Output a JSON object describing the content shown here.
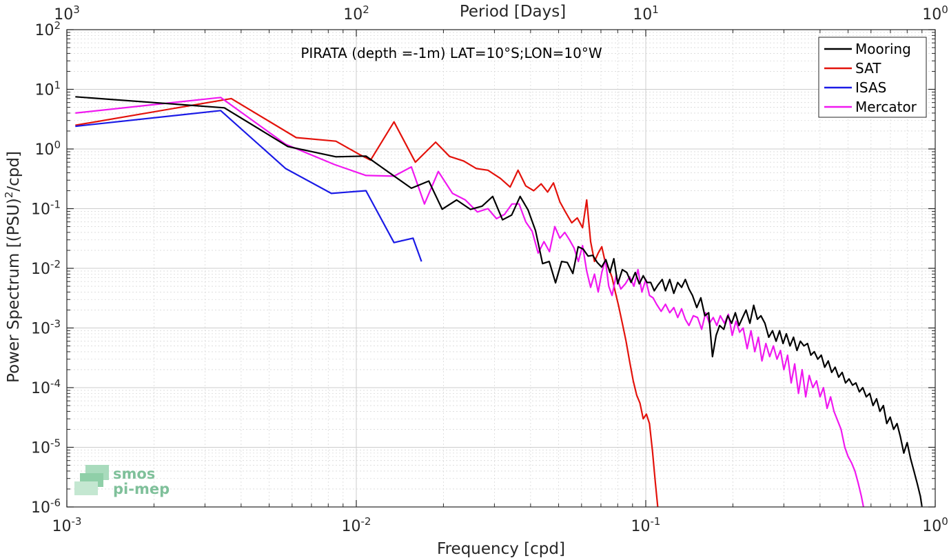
{
  "chart_data": {
    "type": "line",
    "title": "PIRATA (depth =-1m) LAT=10°S;LON=10°W",
    "xlabel": "Frequency [cpd]",
    "ylabel": "Power Spectrum [(PSU)",
    "ylabel_sup": "2",
    "ylabel_tail": "/cpd]",
    "top_xlabel": "Period [Days]",
    "xscale": "log",
    "yscale": "log",
    "xlim": [
      0.001,
      1
    ],
    "ylim": [
      1e-06,
      100
    ],
    "grid": true,
    "legend_position": "top-right",
    "x_ticks": [
      {
        "value": 0.001,
        "base": "10",
        "exp": "-3"
      },
      {
        "value": 0.01,
        "base": "10",
        "exp": "-2"
      },
      {
        "value": 0.1,
        "base": "10",
        "exp": "-1"
      },
      {
        "value": 1,
        "base": "10",
        "exp": "0"
      }
    ],
    "top_ticks": [
      {
        "value": 1000,
        "base": "10",
        "exp": "3"
      },
      {
        "value": 100,
        "base": "10",
        "exp": "2"
      },
      {
        "value": 10,
        "base": "10",
        "exp": "1"
      },
      {
        "value": 1,
        "base": "10",
        "exp": "0"
      }
    ],
    "y_ticks": [
      {
        "value": 100,
        "base": "10",
        "exp": "2"
      },
      {
        "value": 10,
        "base": "10",
        "exp": "1"
      },
      {
        "value": 1,
        "base": "10",
        "exp": "0"
      },
      {
        "value": 0.1,
        "base": "10",
        "exp": "-1"
      },
      {
        "value": 0.01,
        "base": "10",
        "exp": "-2"
      },
      {
        "value": 0.001,
        "base": "10",
        "exp": "-3"
      },
      {
        "value": 0.0001,
        "base": "10",
        "exp": "-4"
      },
      {
        "value": 1e-05,
        "base": "10",
        "exp": "-5"
      },
      {
        "value": 1e-06,
        "base": "10",
        "exp": "-6"
      }
    ],
    "series": [
      {
        "name": "Mooring",
        "color": "#000000",
        "points": [
          [
            0.00107,
            7.5
          ],
          [
            0.0035,
            4.9
          ],
          [
            0.0058,
            1.1
          ],
          [
            0.0085,
            0.74
          ],
          [
            0.0108,
            0.76
          ],
          [
            0.013,
            0.4
          ],
          [
            0.0155,
            0.22
          ],
          [
            0.0178,
            0.29
          ],
          [
            0.0198,
            0.098
          ],
          [
            0.0222,
            0.14
          ],
          [
            0.0248,
            0.097
          ],
          [
            0.0272,
            0.11
          ],
          [
            0.0296,
            0.16
          ],
          [
            0.032,
            0.065
          ],
          [
            0.0344,
            0.078
          ],
          [
            0.0368,
            0.16
          ],
          [
            0.0392,
            0.095
          ],
          [
            0.0416,
            0.043
          ],
          [
            0.044,
            0.012
          ],
          [
            0.0464,
            0.013
          ],
          [
            0.0488,
            0.0057
          ],
          [
            0.0512,
            0.013
          ],
          [
            0.0536,
            0.0125
          ],
          [
            0.056,
            0.0082
          ],
          [
            0.0584,
            0.023
          ],
          [
            0.0608,
            0.021
          ],
          [
            0.0632,
            0.016
          ],
          [
            0.0656,
            0.0165
          ],
          [
            0.068,
            0.0125
          ],
          [
            0.0704,
            0.0105
          ],
          [
            0.0728,
            0.014
          ],
          [
            0.0752,
            0.0085
          ],
          [
            0.0776,
            0.0145
          ],
          [
            0.08,
            0.0055
          ],
          [
            0.083,
            0.0095
          ],
          [
            0.086,
            0.0085
          ],
          [
            0.089,
            0.0058
          ],
          [
            0.092,
            0.0085
          ],
          [
            0.095,
            0.0055
          ],
          [
            0.098,
            0.0075
          ],
          [
            0.101,
            0.0058
          ],
          [
            0.104,
            0.0058
          ],
          [
            0.107,
            0.0042
          ],
          [
            0.11,
            0.0052
          ],
          [
            0.114,
            0.0065
          ],
          [
            0.117,
            0.0042
          ],
          [
            0.121,
            0.0065
          ],
          [
            0.125,
            0.0038
          ],
          [
            0.129,
            0.0058
          ],
          [
            0.133,
            0.0048
          ],
          [
            0.137,
            0.0065
          ],
          [
            0.141,
            0.0045
          ],
          [
            0.145,
            0.0035
          ],
          [
            0.15,
            0.0022
          ],
          [
            0.155,
            0.0032
          ],
          [
            0.16,
            0.0016
          ],
          [
            0.165,
            0.0018
          ],
          [
            0.17,
            0.00033
          ],
          [
            0.175,
            0.00075
          ],
          [
            0.18,
            0.0011
          ],
          [
            0.186,
            0.00095
          ],
          [
            0.192,
            0.0016
          ],
          [
            0.198,
            0.0012
          ],
          [
            0.204,
            0.0018
          ],
          [
            0.21,
            0.0011
          ],
          [
            0.216,
            0.0015
          ],
          [
            0.222,
            0.002
          ],
          [
            0.229,
            0.0012
          ],
          [
            0.236,
            0.0024
          ],
          [
            0.243,
            0.0014
          ],
          [
            0.25,
            0.0016
          ],
          [
            0.258,
            0.0012
          ],
          [
            0.266,
            0.0007
          ],
          [
            0.274,
            0.0009
          ],
          [
            0.282,
            0.0006
          ],
          [
            0.29,
            0.0009
          ],
          [
            0.298,
            0.00055
          ],
          [
            0.306,
            0.0008
          ],
          [
            0.315,
            0.0005
          ],
          [
            0.324,
            0.0007
          ],
          [
            0.333,
            0.00042
          ],
          [
            0.342,
            0.0006
          ],
          [
            0.352,
            0.0005
          ],
          [
            0.362,
            0.00055
          ],
          [
            0.372,
            0.00035
          ],
          [
            0.382,
            0.0004
          ],
          [
            0.393,
            0.0003
          ],
          [
            0.404,
            0.00035
          ],
          [
            0.415,
            0.00022
          ],
          [
            0.427,
            0.00028
          ],
          [
            0.439,
            0.00018
          ],
          [
            0.451,
            0.00022
          ],
          [
            0.464,
            0.00015
          ],
          [
            0.477,
            0.00018
          ],
          [
            0.49,
            0.00012
          ],
          [
            0.504,
            0.00014
          ],
          [
            0.518,
            0.00011
          ],
          [
            0.532,
            0.00012
          ],
          [
            0.547,
            8.5e-05
          ],
          [
            0.562,
            0.0001
          ],
          [
            0.578,
            7e-05
          ],
          [
            0.594,
            8e-05
          ],
          [
            0.61,
            5e-05
          ],
          [
            0.627,
            6.5e-05
          ],
          [
            0.644,
            4e-05
          ],
          [
            0.662,
            5e-05
          ],
          [
            0.68,
            2.5e-05
          ],
          [
            0.699,
            3.2e-05
          ],
          [
            0.718,
            2e-05
          ],
          [
            0.738,
            2.5e-05
          ],
          [
            0.758,
            1.5e-05
          ],
          [
            0.779,
            8e-06
          ],
          [
            0.8,
            1.2e-05
          ],
          [
            0.822,
            6.5e-06
          ],
          [
            0.844,
            4e-06
          ],
          [
            0.866,
            2.5e-06
          ],
          [
            0.889,
            1.5e-06
          ],
          [
            0.9,
            1e-06
          ]
        ]
      },
      {
        "name": "SAT",
        "color": "#e3120b",
        "points": [
          [
            0.00107,
            2.5
          ],
          [
            0.0037,
            7.0
          ],
          [
            0.0062,
            1.55
          ],
          [
            0.0085,
            1.35
          ],
          [
            0.0103,
            0.8
          ],
          [
            0.0112,
            0.65
          ],
          [
            0.0135,
            2.85
          ],
          [
            0.016,
            0.6
          ],
          [
            0.0188,
            1.3
          ],
          [
            0.021,
            0.75
          ],
          [
            0.0235,
            0.63
          ],
          [
            0.026,
            0.47
          ],
          [
            0.0285,
            0.44
          ],
          [
            0.0315,
            0.32
          ],
          [
            0.034,
            0.23
          ],
          [
            0.0362,
            0.44
          ],
          [
            0.0385,
            0.24
          ],
          [
            0.041,
            0.2
          ],
          [
            0.0435,
            0.26
          ],
          [
            0.0458,
            0.19
          ],
          [
            0.048,
            0.27
          ],
          [
            0.0505,
            0.13
          ],
          [
            0.053,
            0.085
          ],
          [
            0.0555,
            0.058
          ],
          [
            0.058,
            0.07
          ],
          [
            0.0605,
            0.048
          ],
          [
            0.0625,
            0.14
          ],
          [
            0.0645,
            0.028
          ],
          [
            0.0665,
            0.013
          ],
          [
            0.0685,
            0.018
          ],
          [
            0.0705,
            0.023
          ],
          [
            0.0725,
            0.0125
          ],
          [
            0.0745,
            0.01
          ],
          [
            0.0765,
            0.007
          ],
          [
            0.0785,
            0.004
          ],
          [
            0.0805,
            0.0024
          ],
          [
            0.083,
            0.0012
          ],
          [
            0.0855,
            0.0006
          ],
          [
            0.088,
            0.00027
          ],
          [
            0.0905,
            0.00013
          ],
          [
            0.093,
            7.5e-05
          ],
          [
            0.0955,
            5.5e-05
          ],
          [
            0.098,
            3e-05
          ],
          [
            0.1005,
            3.6e-05
          ],
          [
            0.103,
            2.5e-05
          ],
          [
            0.1055,
            8.5e-06
          ],
          [
            0.108,
            2.5e-06
          ],
          [
            0.11,
            1e-06
          ]
        ]
      },
      {
        "name": "ISAS",
        "color": "#1a1ae6",
        "points": [
          [
            0.00107,
            2.4
          ],
          [
            0.0034,
            4.4
          ],
          [
            0.0057,
            0.47
          ],
          [
            0.0082,
            0.18
          ],
          [
            0.0108,
            0.2
          ],
          [
            0.0135,
            0.027
          ],
          [
            0.0157,
            0.032
          ],
          [
            0.0168,
            0.013
          ]
        ]
      },
      {
        "name": "Mercator",
        "color": "#f018f0",
        "points": [
          [
            0.00107,
            4.0
          ],
          [
            0.0034,
            7.3
          ],
          [
            0.0057,
            1.2
          ],
          [
            0.0084,
            0.55
          ],
          [
            0.0108,
            0.36
          ],
          [
            0.0135,
            0.35
          ],
          [
            0.0155,
            0.5
          ],
          [
            0.0172,
            0.12
          ],
          [
            0.0192,
            0.42
          ],
          [
            0.0215,
            0.18
          ],
          [
            0.0238,
            0.14
          ],
          [
            0.0262,
            0.088
          ],
          [
            0.0285,
            0.1
          ],
          [
            0.0305,
            0.068
          ],
          [
            0.0325,
            0.08
          ],
          [
            0.0345,
            0.12
          ],
          [
            0.0365,
            0.12
          ],
          [
            0.0385,
            0.06
          ],
          [
            0.0405,
            0.042
          ],
          [
            0.0425,
            0.018
          ],
          [
            0.0445,
            0.028
          ],
          [
            0.0465,
            0.019
          ],
          [
            0.0485,
            0.05
          ],
          [
            0.0505,
            0.032
          ],
          [
            0.0525,
            0.04
          ],
          [
            0.0545,
            0.03
          ],
          [
            0.0565,
            0.022
          ],
          [
            0.0585,
            0.013
          ],
          [
            0.0605,
            0.024
          ],
          [
            0.0625,
            0.009
          ],
          [
            0.0645,
            0.0048
          ],
          [
            0.0665,
            0.008
          ],
          [
            0.0685,
            0.004
          ],
          [
            0.0705,
            0.0085
          ],
          [
            0.0725,
            0.014
          ],
          [
            0.0745,
            0.005
          ],
          [
            0.0765,
            0.0035
          ],
          [
            0.079,
            0.0075
          ],
          [
            0.082,
            0.0045
          ],
          [
            0.085,
            0.0055
          ],
          [
            0.088,
            0.0072
          ],
          [
            0.091,
            0.005
          ],
          [
            0.094,
            0.0095
          ],
          [
            0.097,
            0.004
          ],
          [
            0.1,
            0.0065
          ],
          [
            0.103,
            0.0035
          ],
          [
            0.106,
            0.0032
          ],
          [
            0.109,
            0.0025
          ],
          [
            0.113,
            0.0019
          ],
          [
            0.117,
            0.0025
          ],
          [
            0.121,
            0.0018
          ],
          [
            0.125,
            0.0022
          ],
          [
            0.129,
            0.0015
          ],
          [
            0.133,
            0.0021
          ],
          [
            0.137,
            0.0014
          ],
          [
            0.141,
            0.0011
          ],
          [
            0.146,
            0.0016
          ],
          [
            0.151,
            0.0015
          ],
          [
            0.156,
            0.00095
          ],
          [
            0.161,
            0.0018
          ],
          [
            0.166,
            0.0012
          ],
          [
            0.171,
            0.0015
          ],
          [
            0.176,
            0.0011
          ],
          [
            0.181,
            0.0016
          ],
          [
            0.187,
            0.0012
          ],
          [
            0.193,
            0.0017
          ],
          [
            0.199,
            0.00075
          ],
          [
            0.205,
            0.0013
          ],
          [
            0.211,
            0.00085
          ],
          [
            0.217,
            0.001
          ],
          [
            0.224,
            0.00045
          ],
          [
            0.231,
            0.0009
          ],
          [
            0.238,
            0.0004
          ],
          [
            0.245,
            0.0007
          ],
          [
            0.252,
            0.00028
          ],
          [
            0.26,
            0.00055
          ],
          [
            0.268,
            0.00033
          ],
          [
            0.276,
            0.0005
          ],
          [
            0.284,
            0.0003
          ],
          [
            0.292,
            0.00042
          ],
          [
            0.3,
            0.0002
          ],
          [
            0.309,
            0.00035
          ],
          [
            0.318,
            0.00012
          ],
          [
            0.327,
            0.00025
          ],
          [
            0.337,
            8e-05
          ],
          [
            0.347,
            0.0002
          ],
          [
            0.357,
            7e-05
          ],
          [
            0.367,
            0.00016
          ],
          [
            0.378,
            0.0001
          ],
          [
            0.389,
            0.00013
          ],
          [
            0.4,
            7e-05
          ],
          [
            0.411,
            0.0001
          ],
          [
            0.423,
            4.5e-05
          ],
          [
            0.435,
            7e-05
          ],
          [
            0.447,
            4e-05
          ],
          [
            0.46,
            2.8e-05
          ],
          [
            0.473,
            2e-05
          ],
          [
            0.487,
            1e-05
          ],
          [
            0.5,
            7e-06
          ],
          [
            0.514,
            5.5e-06
          ],
          [
            0.528,
            4e-06
          ],
          [
            0.542,
            2.5e-06
          ],
          [
            0.556,
            1.5e-06
          ],
          [
            0.565,
            1e-06
          ]
        ]
      }
    ]
  },
  "logo": {
    "line1": "smos",
    "line2": "pi-mep"
  }
}
